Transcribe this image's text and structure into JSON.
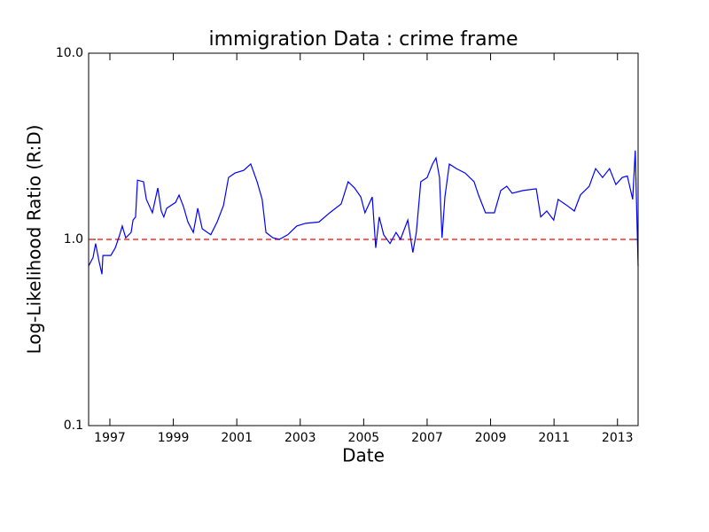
{
  "chart_data": {
    "type": "line",
    "title": "immigration Data : crime frame",
    "xlabel": "Date",
    "ylabel": "Log-Likelihood Ratio (R:D)",
    "ylog": true,
    "xlim": [
      1996.33,
      2013.65
    ],
    "xticks": [
      1997,
      1999,
      2001,
      2003,
      2005,
      2007,
      2009,
      2011,
      2013
    ],
    "ylim": [
      0.1,
      10
    ],
    "yticks": [
      0.1,
      {
        "value": 1,
        "label": "1.0"
      },
      {
        "value": 10,
        "label": "10.0"
      }
    ],
    "hline": {
      "value": 1,
      "color": "#ff0000"
    },
    "series": [
      {
        "color": "#0000ff",
        "x": [
          1996.33,
          1996.47,
          1996.55,
          1996.66,
          1996.75,
          1996.78,
          1997.03,
          1997.17,
          1997.31,
          1997.39,
          1997.5,
          1997.67,
          1997.73,
          1997.81,
          1997.87,
          1998.06,
          1998.15,
          1998.34,
          1998.51,
          1998.62,
          1998.7,
          1998.79,
          1999.07,
          1999.18,
          1999.32,
          1999.46,
          1999.63,
          1999.77,
          1999.91,
          2000.18,
          2000.38,
          2000.58,
          2000.74,
          2000.94,
          2001.22,
          2001.44,
          2001.64,
          2001.8,
          2001.92,
          2002.14,
          2002.34,
          2002.61,
          2002.89,
          2003.17,
          2003.59,
          2003.93,
          2004.29,
          2004.51,
          2004.71,
          2004.91,
          2005.04,
          2005.27,
          2005.38,
          2005.49,
          2005.63,
          2005.83,
          2006.02,
          2006.16,
          2006.39,
          2006.55,
          2006.66,
          2006.8,
          2007.0,
          2007.17,
          2007.28,
          2007.39,
          2007.47,
          2007.56,
          2007.7,
          2007.92,
          2008.2,
          2008.48,
          2008.62,
          2008.84,
          2009.12,
          2009.32,
          2009.51,
          2009.68,
          2010.02,
          2010.44,
          2010.58,
          2010.77,
          2010.99,
          2011.13,
          2011.41,
          2011.64,
          2011.83,
          2012.11,
          2012.31,
          2012.53,
          2012.75,
          2012.95,
          2013.15,
          2013.31,
          2013.48,
          2013.56,
          2013.65
        ],
        "values": [
          0.72,
          0.8,
          0.95,
          0.76,
          0.65,
          0.82,
          0.82,
          0.9,
          1.06,
          1.18,
          1.02,
          1.09,
          1.27,
          1.32,
          2.08,
          2.04,
          1.64,
          1.39,
          1.89,
          1.42,
          1.32,
          1.47,
          1.58,
          1.73,
          1.5,
          1.24,
          1.09,
          1.47,
          1.14,
          1.06,
          1.24,
          1.52,
          2.15,
          2.27,
          2.35,
          2.54,
          2.04,
          1.64,
          1.09,
          1.02,
          1.0,
          1.06,
          1.18,
          1.22,
          1.24,
          1.39,
          1.55,
          2.04,
          1.89,
          1.69,
          1.39,
          1.69,
          0.9,
          1.32,
          1.06,
          0.95,
          1.09,
          1.0,
          1.27,
          0.85,
          1.09,
          2.04,
          2.15,
          2.54,
          2.74,
          2.15,
          1.02,
          1.69,
          2.54,
          2.4,
          2.27,
          2.04,
          1.73,
          1.39,
          1.39,
          1.83,
          1.93,
          1.77,
          1.83,
          1.87,
          1.32,
          1.42,
          1.27,
          1.64,
          1.52,
          1.42,
          1.73,
          1.93,
          2.4,
          2.15,
          2.4,
          1.97,
          2.15,
          2.19,
          1.64,
          3.0,
          0.72
        ]
      }
    ]
  }
}
